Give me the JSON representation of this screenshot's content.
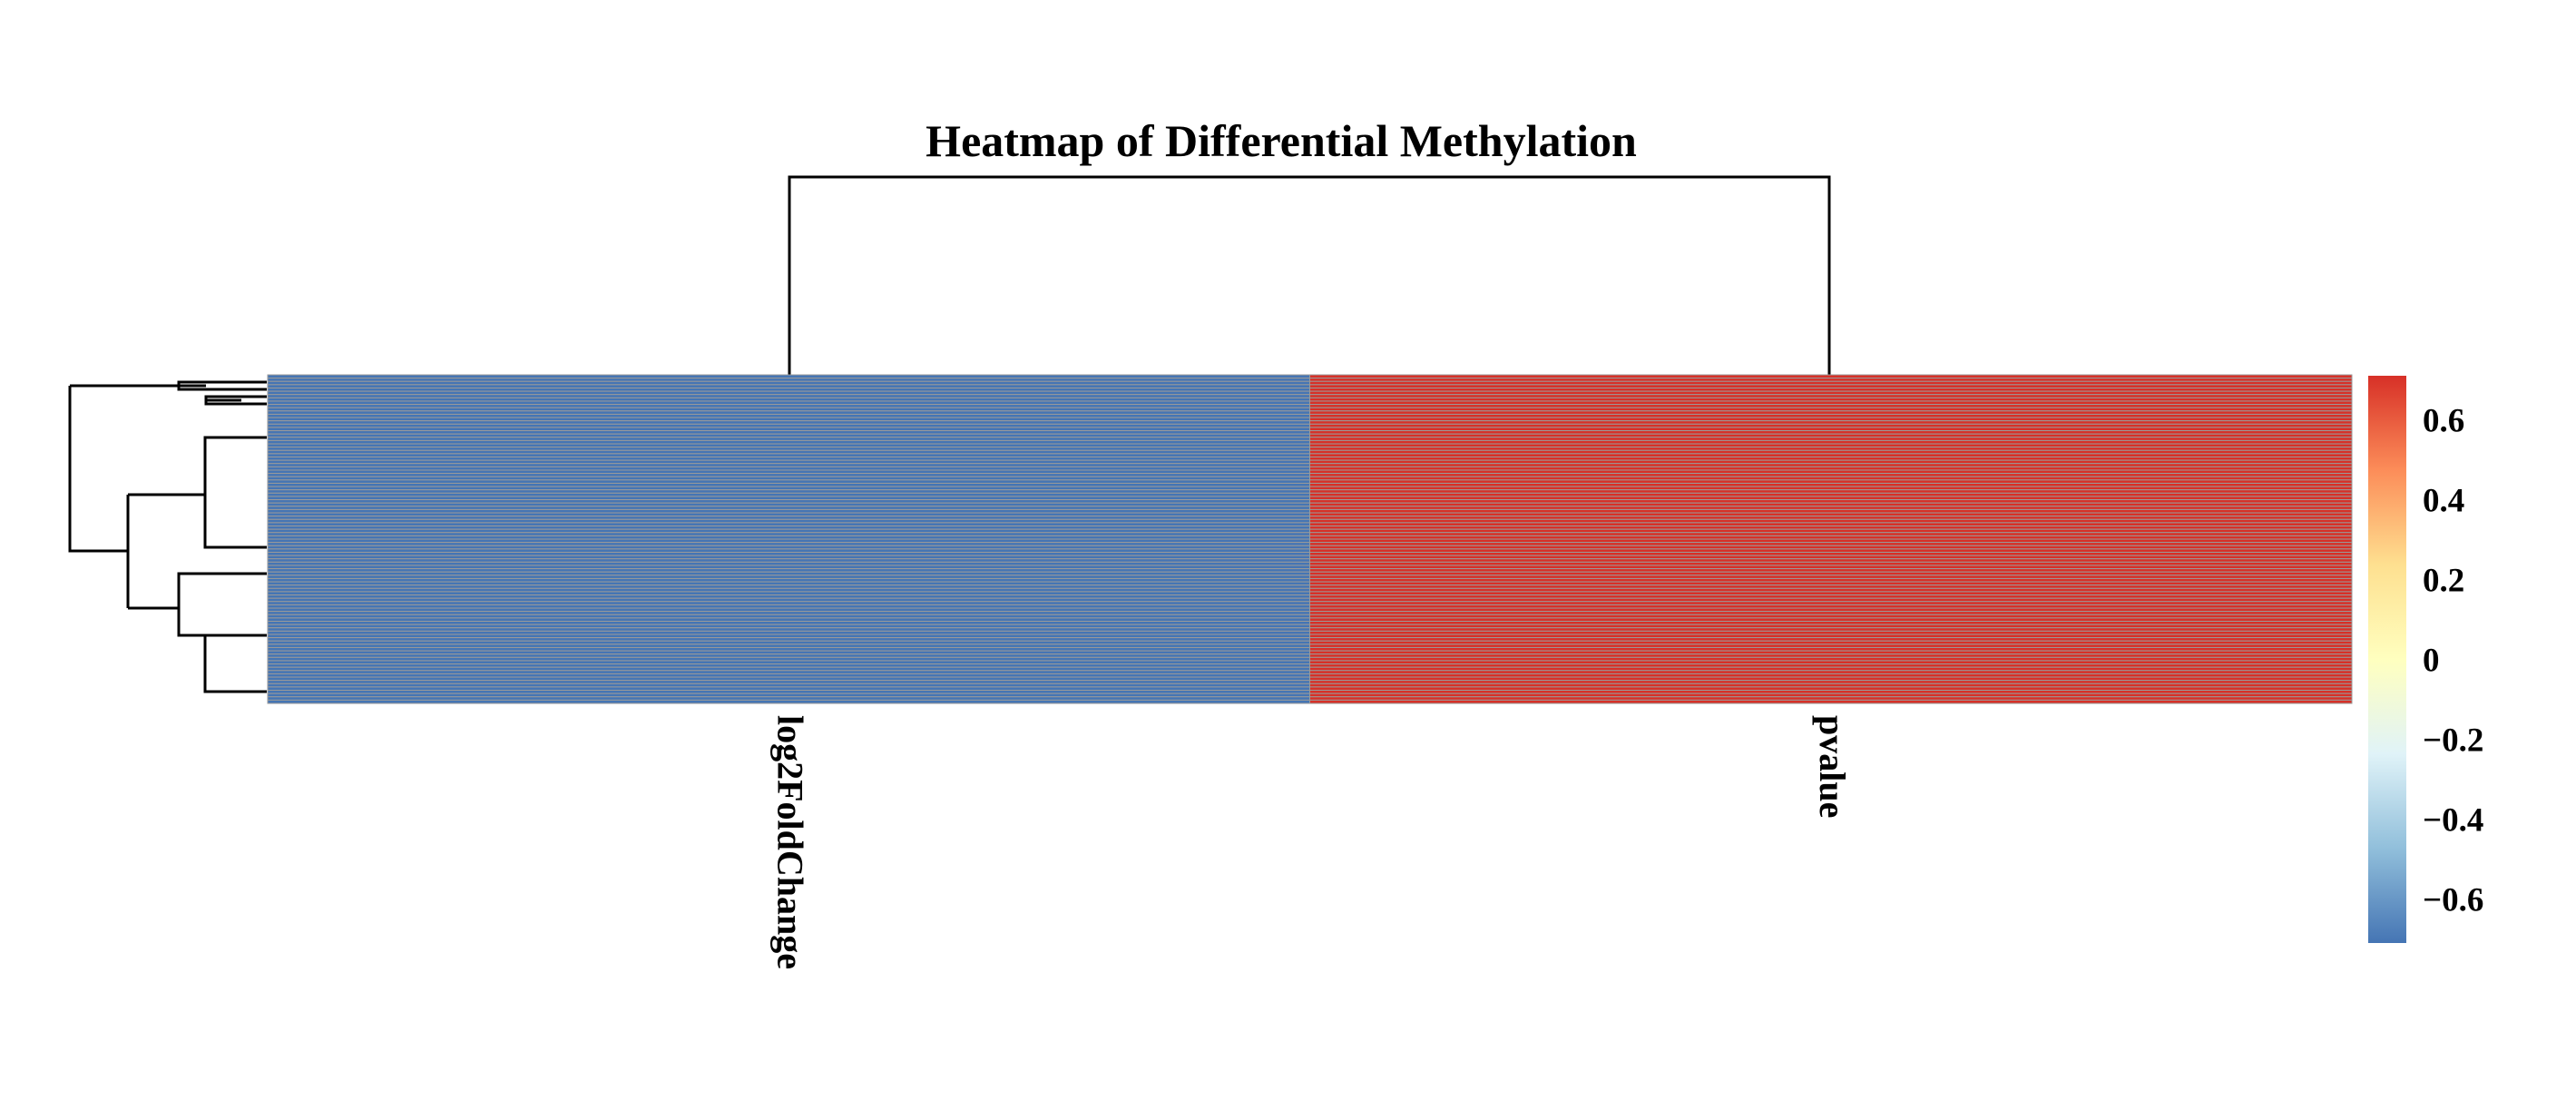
{
  "chart_data": {
    "type": "heatmap",
    "title": "Heatmap of Differential Methylation",
    "columns": [
      "log2FoldChange",
      "pvalue"
    ],
    "row_count": 100,
    "column_values": [
      -0.71,
      0.71
    ],
    "color_scale": {
      "min": -0.71,
      "max": 0.71,
      "colors": [
        "#4575B4",
        "#91BFDB",
        "#E0F3F8",
        "#FFFFBF",
        "#FEE090",
        "#FC8D59",
        "#D73027"
      ]
    },
    "legend": {
      "placement": "right",
      "ticks": [
        0.6,
        0.4,
        0.2,
        0,
        -0.2,
        -0.4,
        -0.6
      ],
      "tick_labels": [
        "0.6",
        "0.4",
        "0.2",
        "0",
        "−0.2",
        "−0.4",
        "−0.6"
      ]
    },
    "cell_border_color": "#9a9a9a",
    "column_dendrogram": true,
    "row_dendrogram": true
  }
}
